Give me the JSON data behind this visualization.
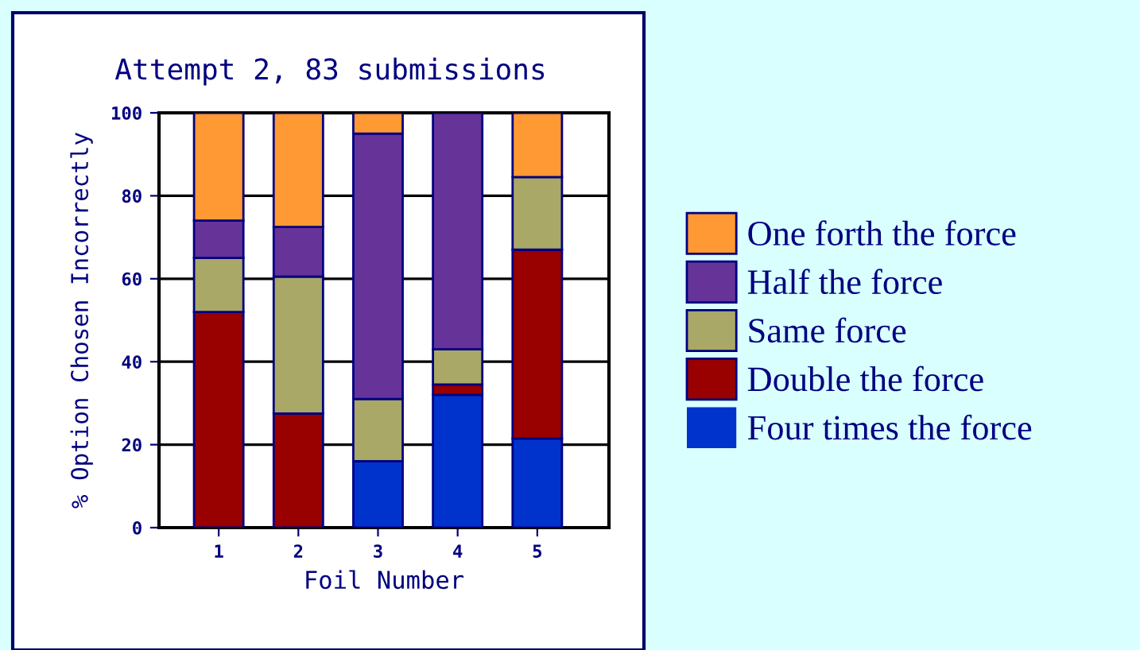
{
  "chart_data": {
    "type": "bar",
    "stacked": true,
    "title": "Attempt 2, 83 submissions",
    "xlabel": "Foil Number",
    "ylabel": "% Option Chosen Incorrectly",
    "categories": [
      "1",
      "2",
      "3",
      "4",
      "5"
    ],
    "series": [
      {
        "name": "Four times the force",
        "color": "#0033cc",
        "values": [
          0,
          0,
          16,
          32,
          21.5
        ]
      },
      {
        "name": "Double the force",
        "color": "#990000",
        "values": [
          52,
          27.5,
          0,
          2.5,
          45.5
        ]
      },
      {
        "name": "Same force",
        "color": "#aaa866",
        "values": [
          13,
          33,
          15,
          8.5,
          17.5
        ]
      },
      {
        "name": "Half the force",
        "color": "#663399",
        "values": [
          9,
          12,
          64,
          57,
          0
        ]
      },
      {
        "name": "One forth the force",
        "color": "#ff9933",
        "values": [
          26,
          27.5,
          5,
          0,
          15.5
        ]
      }
    ],
    "ylim": [
      0,
      100
    ],
    "yticks": [
      0,
      20,
      40,
      60,
      80,
      100
    ],
    "grid": "y",
    "legend": "right"
  }
}
